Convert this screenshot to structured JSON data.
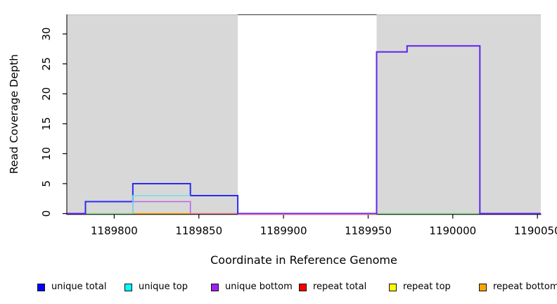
{
  "chart_data": {
    "type": "line",
    "title": "",
    "xlabel": "Coordinate in Reference Genome",
    "ylabel": "Read Coverage Depth",
    "xlim": [
      1189772,
      1190052
    ],
    "ylim": [
      0,
      33.2
    ],
    "x_ticks": [
      1189800,
      1189850,
      1189900,
      1189950,
      1190000,
      1190050
    ],
    "y_ticks": [
      0,
      5,
      10,
      15,
      20,
      25,
      30
    ],
    "grid": false,
    "legend_position": "bottom",
    "colors": {
      "shade": "#D8D8D8",
      "frame_top_gap": "#6f6f6f",
      "frame_top_faint": "#bdbdbd",
      "axis": "#000000"
    },
    "shaded_regions": [
      {
        "name": "left-shaded-region",
        "x0": 1189772,
        "x1": 1189873
      },
      {
        "name": "right-shaded-region",
        "x0": 1189955,
        "x1": 1190052
      }
    ],
    "series": [
      {
        "name": "zero-line-green-left",
        "color": "#8FDF8F",
        "width": 1.4,
        "opacity": 1,
        "dy": 0,
        "points": [
          [
            1189783,
            0
          ],
          [
            1189811,
            0
          ]
        ]
      },
      {
        "name": "repeat-bottom-zero-line",
        "color": "#FFA500",
        "width": 1.6,
        "opacity": 1,
        "dy": 0,
        "points": [
          [
            1189811,
            0
          ],
          [
            1189845,
            0
          ]
        ]
      },
      {
        "name": "repeat-total-zero-line",
        "color": "#F0808F",
        "width": 1.4,
        "opacity": 1,
        "dy": 0,
        "points": [
          [
            1189845,
            0
          ],
          [
            1189955,
            0
          ]
        ]
      },
      {
        "name": "zero-line-green-right",
        "color": "#8FDF8F",
        "width": 1.4,
        "opacity": 1,
        "dy": 0,
        "points": [
          [
            1189955,
            0
          ],
          [
            1190016,
            0
          ]
        ]
      },
      {
        "name": "unique-bottom-low-block",
        "color": "#A020F0",
        "width": 1.6,
        "opacity": 0.6,
        "dy": 0,
        "points": [
          [
            1189811,
            0
          ],
          [
            1189811,
            2
          ],
          [
            1189845,
            2
          ],
          [
            1189845,
            0
          ]
        ]
      },
      {
        "name": "unique-total",
        "color": "#2B2BEE",
        "width": 2,
        "opacity": 1,
        "dy": 0,
        "points": [
          [
            1189772,
            0
          ],
          [
            1189783,
            0
          ],
          [
            1189783,
            2
          ],
          [
            1189811,
            2
          ],
          [
            1189811,
            5
          ],
          [
            1189845,
            5
          ],
          [
            1189845,
            3
          ],
          [
            1189873,
            3
          ],
          [
            1189873,
            0
          ],
          [
            1189955,
            0
          ],
          [
            1189955,
            27
          ],
          [
            1189973,
            27
          ],
          [
            1189973,
            28
          ],
          [
            1190016,
            28
          ],
          [
            1190016,
            0
          ],
          [
            1190052,
            0
          ]
        ]
      },
      {
        "name": "unique-top",
        "color": "#70DDE6",
        "width": 1.6,
        "opacity": 1,
        "dy": 0,
        "points": [
          [
            1189811,
            0
          ],
          [
            1189811,
            3
          ],
          [
            1189845,
            3
          ]
        ]
      },
      {
        "name": "unique-bottom-zero-left",
        "color": "#A020F0",
        "width": 1.6,
        "opacity": 0.6,
        "dy": 0,
        "points": [
          [
            1189772,
            0
          ],
          [
            1189783,
            0
          ]
        ]
      },
      {
        "name": "unique-bottom-right-block",
        "color": "#A020F0",
        "width": 1.6,
        "opacity": 0.6,
        "dy": 0,
        "points": [
          [
            1189873,
            0
          ],
          [
            1189955,
            0
          ],
          [
            1189955,
            27
          ],
          [
            1189973,
            27
          ],
          [
            1189973,
            28
          ],
          [
            1190016,
            28
          ],
          [
            1190016,
            0
          ],
          [
            1190052,
            0
          ]
        ]
      },
      {
        "name": "repeat-total-gap-fringe",
        "color": "#F0808F",
        "width": 1.2,
        "opacity": 1,
        "dy": 1.4,
        "points": [
          [
            1189873,
            0
          ],
          [
            1189955,
            0
          ]
        ]
      }
    ],
    "legend": [
      {
        "label": "unique total",
        "color": "#0000FF"
      },
      {
        "label": "unique top",
        "color": "#00FFFF"
      },
      {
        "label": "unique bottom",
        "color": "#A020F0"
      },
      {
        "label": "repeat total",
        "color": "#FF0000"
      },
      {
        "label": "repeat top",
        "color": "#FFFF00"
      },
      {
        "label": "repeat bottom",
        "color": "#FFA500"
      }
    ]
  }
}
